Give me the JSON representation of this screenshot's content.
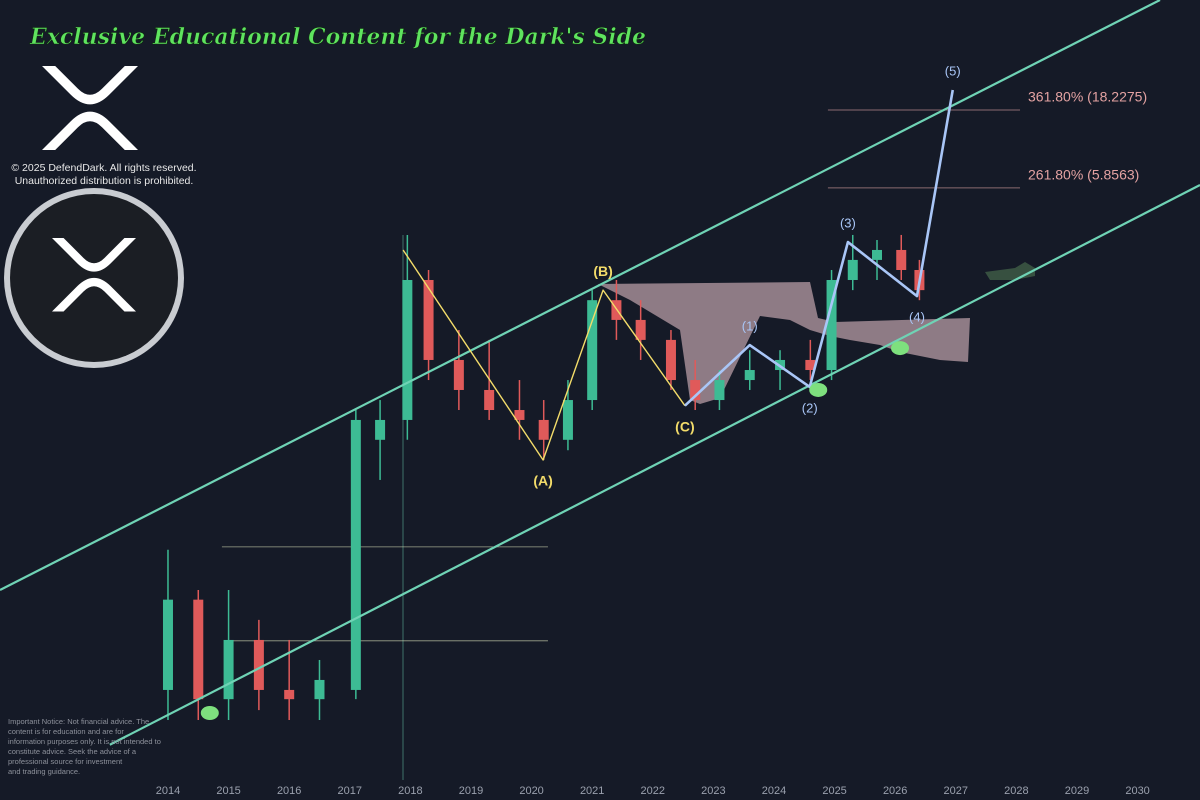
{
  "chart_data": {
    "type": "candlestick",
    "title": "Exclusive Educational Content for the Dark's Side",
    "notes": [
      "© 2025 DefendDark. All rights reserved.",
      "Unauthorized distribution is prohibited."
    ],
    "disclaimer": [
      "Important Notice: Not financial advice. The",
      "content is for education and are for",
      "information purposes only. It is not intended to",
      "constitute advice. Seek the advice of a",
      "professional source for investment",
      "and trading guidance."
    ],
    "log_scale": true,
    "xlim": [
      2011.228,
      2031.03
    ],
    "ylim": [
      0.001047,
      90.55
    ],
    "xticks": [
      2014,
      2015,
      2016,
      2017,
      2018,
      2019,
      2020,
      2021,
      2022,
      2023,
      2024,
      2025,
      2026,
      2027,
      2028,
      2029,
      2030
    ],
    "up_color": "#3dbb94",
    "down_color": "#e05a5a",
    "candles": {
      "x": [
        2014.0,
        2014.5,
        2015.0,
        2015.5,
        2016.0,
        2016.5,
        2017.1,
        2017.5,
        2017.95,
        2018.3,
        2018.8,
        2019.3,
        2019.8,
        2020.2,
        2020.6,
        2021.0,
        2021.4,
        2021.8,
        2022.3,
        2022.7,
        2023.1,
        2023.6,
        2024.1,
        2024.6,
        2024.95,
        2025.3,
        2025.7,
        2026.1,
        2026.4
      ],
      "open": [
        0.00389,
        0.0145,
        0.0034,
        0.00806,
        0.00389,
        0.0034,
        0.00389,
        0.149,
        0.199,
        1.53,
        0.477,
        0.308,
        0.23,
        0.199,
        0.149,
        0.266,
        1.14,
        0.855,
        0.639,
        0.356,
        0.266,
        0.356,
        0.412,
        0.477,
        0.412,
        1.53,
        2.05,
        2.37,
        1.77
      ],
      "high": [
        0.03,
        0.0167,
        0.0167,
        0.0108,
        0.00806,
        0.00602,
        0.23,
        0.266,
        2.95,
        1.77,
        0.738,
        0.639,
        0.356,
        0.266,
        0.356,
        1.32,
        1.53,
        1.14,
        0.738,
        0.477,
        0.412,
        0.55,
        0.55,
        0.639,
        1.77,
        2.95,
        2.74,
        2.95,
        2.05
      ],
      "low": [
        0.00251,
        0.00251,
        0.00251,
        0.0029,
        0.00251,
        0.00251,
        0.0034,
        0.083,
        0.149,
        0.356,
        0.23,
        0.199,
        0.149,
        0.111,
        0.128,
        0.23,
        0.639,
        0.477,
        0.308,
        0.23,
        0.23,
        0.308,
        0.308,
        0.356,
        0.356,
        1.32,
        1.53,
        1.53,
        1.14
      ],
      "close": [
        0.0145,
        0.0034,
        0.00806,
        0.00389,
        0.0034,
        0.0045,
        0.199,
        0.199,
        1.53,
        0.477,
        0.308,
        0.23,
        0.199,
        0.149,
        0.266,
        1.14,
        0.855,
        0.639,
        0.356,
        0.266,
        0.356,
        0.412,
        0.477,
        0.412,
        1.53,
        2.05,
        2.37,
        1.77,
        1.32
      ]
    },
    "channels": [
      {
        "color": "#6fd3b5",
        "x": [
          2011.228,
          2030.37
        ],
        "values": [
          0.0167,
          90.55
        ]
      },
      {
        "color": "#6fd3b5",
        "x": [
          2013.04,
          2031.03
        ],
        "values": [
          0.00175,
          6.11
        ]
      }
    ],
    "waves": [
      {
        "color": "#f3dc6a",
        "x": [
          2017.88,
          2020.19,
          2021.18,
          2022.53
        ],
        "values": [
          2.37,
          0.111,
          1.32,
          0.245
        ],
        "labels": [
          null,
          "(A)",
          "(B)",
          "(C)"
        ]
      },
      {
        "color": "#a9c6f7",
        "x": [
          2022.53,
          2023.6,
          2024.59,
          2025.22,
          2026.36,
          2026.95
        ],
        "values": [
          0.245,
          0.593,
          0.322,
          2.66,
          1.21,
          24.4
        ],
        "labels": [
          null,
          "(1)",
          "(2)",
          "(3)",
          "(4)",
          "(5)"
        ]
      }
    ],
    "fib_levels": [
      {
        "value": 18.2275,
        "label": "361.80% (18.2275)",
        "x": [
          2024.89,
          2028.06
        ]
      },
      {
        "value": 5.8563,
        "label": "261.80% (5.8563)",
        "x": [
          2024.89,
          2028.06
        ]
      }
    ],
    "levels": [
      {
        "value": 0.0313,
        "x": [
          2014.89,
          2020.27
        ]
      },
      {
        "value": 0.00796,
        "x": [
          2015.06,
          2020.27
        ]
      }
    ],
    "markers": {
      "color": "#7ee07e",
      "x": [
        2014.69,
        2024.73,
        2026.08
      ],
      "values": [
        0.00278,
        0.308,
        0.567
      ]
    }
  }
}
